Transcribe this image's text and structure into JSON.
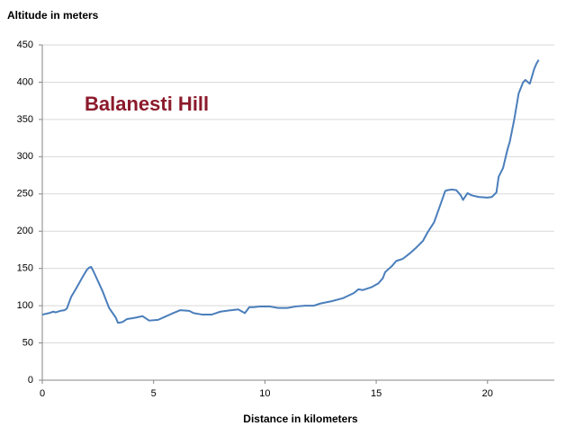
{
  "chart_data": {
    "type": "line",
    "title": "Altitude in meters",
    "x_label": "Distance in kilometers",
    "annotation": "Balanesti Hill",
    "color": "#4a7ebb",
    "grid": true,
    "xlim": [
      0,
      23
    ],
    "xticks": [
      0,
      5,
      10,
      15,
      20
    ],
    "ylim": [
      0,
      450
    ],
    "yticks": [
      0,
      50,
      100,
      150,
      200,
      250,
      300,
      350,
      400,
      450
    ],
    "x": [
      0,
      0.3,
      0.5,
      0.6,
      0.8,
      1.0,
      1.1,
      1.3,
      1.5,
      1.8,
      2.0,
      2.1,
      2.2,
      2.3,
      2.5,
      2.7,
      3.0,
      3.3,
      3.4,
      3.6,
      3.8,
      4.0,
      4.2,
      4.5,
      4.8,
      5.2,
      5.5,
      5.8,
      6.2,
      6.6,
      6.8,
      7.2,
      7.6,
      7.8,
      8.0,
      8.5,
      8.8,
      9.1,
      9.3,
      9.5,
      9.8,
      10.2,
      10.6,
      11.0,
      11.4,
      11.8,
      12.2,
      12.5,
      13.0,
      13.5,
      14.0,
      14.2,
      14.4,
      14.8,
      15.1,
      15.3,
      15.4,
      15.7,
      15.9,
      16.2,
      16.5,
      16.8,
      17.1,
      17.3,
      17.6,
      17.9,
      18.1,
      18.2,
      18.4,
      18.6,
      18.8,
      18.9,
      19.1,
      19.3,
      19.6,
      20.0,
      20.2,
      20.4,
      20.5,
      20.7,
      20.9,
      21.0,
      21.2,
      21.4,
      21.6,
      21.7,
      21.9,
      22.0,
      22.1,
      22.2,
      22.3
    ],
    "values": [
      88,
      90,
      92,
      91,
      93,
      94,
      96,
      112,
      122,
      138,
      148,
      151,
      152,
      146,
      133,
      120,
      97,
      84,
      77,
      78,
      82,
      83,
      84,
      86,
      80,
      81,
      85,
      89,
      94,
      93,
      90,
      88,
      88,
      90,
      92,
      94,
      95,
      90,
      98,
      98,
      99,
      99,
      97,
      97,
      99,
      100,
      100,
      103,
      106,
      110,
      117,
      122,
      121,
      125,
      130,
      137,
      145,
      153,
      160,
      163,
      170,
      178,
      187,
      198,
      212,
      237,
      254,
      255,
      256,
      255,
      248,
      242,
      251,
      248,
      246,
      245,
      246,
      252,
      273,
      285,
      310,
      320,
      350,
      385,
      400,
      403,
      398,
      408,
      418,
      425,
      430
    ]
  }
}
